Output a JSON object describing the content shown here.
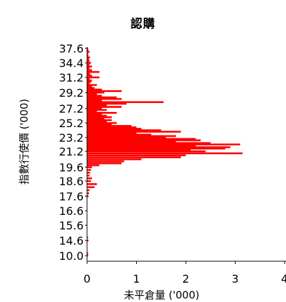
{
  "chart_data": {
    "type": "bar",
    "orientation": "horizontal",
    "title": "認購",
    "xlabel": "未平倉量 ('000)",
    "ylabel": "指數行使價 ('000)",
    "xlim": [
      0,
      4
    ],
    "x_ticks": [
      "0",
      "1",
      "2",
      "3",
      "4"
    ],
    "y_ticks": [
      "10.0",
      "14.6",
      "15.6",
      "16.6",
      "17.6",
      "18.6",
      "19.6",
      "21.2",
      "23.2",
      "25.2",
      "27.2",
      "29.2",
      "31.2",
      "34.4",
      "37.6"
    ],
    "bar_color": "#ff0000",
    "grid": false,
    "legend": "none",
    "categories": [
      "10.0",
      "10.4",
      "10.8",
      "14.6",
      "14.8",
      "17.6",
      "17.8",
      "18.0",
      "18.2",
      "18.4",
      "18.6",
      "18.8",
      "19.0",
      "19.2",
      "19.4",
      "19.6",
      "19.8",
      "20.0",
      "20.2",
      "20.4",
      "20.6",
      "20.8",
      "21.0",
      "21.2",
      "21.4",
      "21.6",
      "21.8",
      "22.0",
      "22.2",
      "22.4",
      "22.6",
      "22.8",
      "23.0",
      "23.2",
      "23.4",
      "23.6",
      "23.8",
      "24.0",
      "24.2",
      "24.4",
      "24.6",
      "24.8",
      "25.0",
      "25.2",
      "25.4",
      "25.6",
      "25.8",
      "26.0",
      "26.2",
      "26.4",
      "26.6",
      "26.8",
      "27.0",
      "27.2",
      "27.4",
      "27.6",
      "27.8",
      "28.0",
      "28.2",
      "28.4",
      "28.6",
      "28.8",
      "29.0",
      "29.2",
      "29.4",
      "29.6",
      "29.8",
      "30.0",
      "30.2",
      "30.4",
      "30.6",
      "30.8",
      "31.0",
      "31.2",
      "31.6",
      "32.0",
      "32.4",
      "32.8",
      "33.2",
      "33.6",
      "34.0",
      "34.4",
      "34.8",
      "35.2",
      "35.6",
      "36.0",
      "36.4",
      "36.8",
      "37.2",
      "37.6"
    ],
    "values": [
      0.02,
      0.02,
      0.02,
      0.03,
      0.02,
      0.03,
      0.04,
      0.05,
      0.15,
      0.2,
      0.08,
      0.1,
      0.05,
      0.06,
      0.08,
      0.1,
      0.25,
      0.7,
      0.75,
      1.1,
      1.9,
      2.0,
      3.15,
      2.4,
      2.1,
      2.8,
      2.9,
      2.2,
      3.1,
      2.5,
      1.8,
      2.3,
      2.2,
      1.6,
      1.8,
      1.3,
      1.0,
      1.9,
      1.5,
      1.1,
      1.0,
      0.9,
      0.5,
      0.6,
      0.4,
      0.5,
      0.35,
      0.5,
      0.4,
      0.3,
      0.6,
      0.2,
      0.4,
      0.3,
      0.7,
      0.4,
      0.8,
      1.55,
      0.3,
      0.7,
      0.6,
      0.3,
      0.2,
      0.35,
      0.7,
      0.3,
      0.15,
      0.1,
      0.2,
      0.05,
      0.08,
      0.1,
      0.05,
      0.25,
      0.1,
      0.06,
      0.25,
      0.1,
      0.05,
      0.1,
      0.05,
      0.08,
      0.05,
      0.04,
      0.06,
      0.03,
      0.02,
      0.05,
      0.03,
      0.02
    ]
  }
}
